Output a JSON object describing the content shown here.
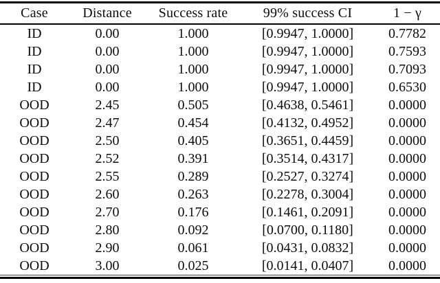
{
  "table": {
    "columns": [
      "Case",
      "Distance",
      "Success rate",
      "99% success CI",
      "1 − γ"
    ],
    "rows": [
      {
        "case": "ID",
        "distance": "0.00",
        "success_rate": "1.000",
        "ci": "[0.9947, 1.0000]",
        "one_minus_gamma": "0.7782"
      },
      {
        "case": "ID",
        "distance": "0.00",
        "success_rate": "1.000",
        "ci": "[0.9947, 1.0000]",
        "one_minus_gamma": "0.7593"
      },
      {
        "case": "ID",
        "distance": "0.00",
        "success_rate": "1.000",
        "ci": "[0.9947, 1.0000]",
        "one_minus_gamma": "0.7093"
      },
      {
        "case": "ID",
        "distance": "0.00",
        "success_rate": "1.000",
        "ci": "[0.9947, 1.0000]",
        "one_minus_gamma": "0.6530"
      },
      {
        "case": "OOD",
        "distance": "2.45",
        "success_rate": "0.505",
        "ci": "[0.4638, 0.5461]",
        "one_minus_gamma": "0.0000"
      },
      {
        "case": "OOD",
        "distance": "2.47",
        "success_rate": "0.454",
        "ci": "[0.4132, 0.4952]",
        "one_minus_gamma": "0.0000"
      },
      {
        "case": "OOD",
        "distance": "2.50",
        "success_rate": "0.405",
        "ci": "[0.3651, 0.4459]",
        "one_minus_gamma": "0.0000"
      },
      {
        "case": "OOD",
        "distance": "2.52",
        "success_rate": "0.391",
        "ci": "[0.3514, 0.4317]",
        "one_minus_gamma": "0.0000"
      },
      {
        "case": "OOD",
        "distance": "2.55",
        "success_rate": "0.289",
        "ci": "[0.2527, 0.3274]",
        "one_minus_gamma": "0.0000"
      },
      {
        "case": "OOD",
        "distance": "2.60",
        "success_rate": "0.263",
        "ci": "[0.2278, 0.3004]",
        "one_minus_gamma": "0.0000"
      },
      {
        "case": "OOD",
        "distance": "2.70",
        "success_rate": "0.176",
        "ci": "[0.1461, 0.2091]",
        "one_minus_gamma": "0.0000"
      },
      {
        "case": "OOD",
        "distance": "2.80",
        "success_rate": "0.092",
        "ci": "[0.0700, 0.1180]",
        "one_minus_gamma": "0.0000"
      },
      {
        "case": "OOD",
        "distance": "2.90",
        "success_rate": "0.061",
        "ci": "[0.0431, 0.0832]",
        "one_minus_gamma": "0.0000"
      },
      {
        "case": "OOD",
        "distance": "3.00",
        "success_rate": "0.025",
        "ci": "[0.0141, 0.0407]",
        "one_minus_gamma": "0.0000"
      }
    ]
  },
  "chart_data": {
    "type": "table",
    "columns": [
      "Case",
      "Distance",
      "Success rate",
      "99% success CI",
      "1 − γ"
    ],
    "rows": [
      [
        "ID",
        0.0,
        1.0,
        "[0.9947, 1.0000]",
        0.7782
      ],
      [
        "ID",
        0.0,
        1.0,
        "[0.9947, 1.0000]",
        0.7593
      ],
      [
        "ID",
        0.0,
        1.0,
        "[0.9947, 1.0000]",
        0.7093
      ],
      [
        "ID",
        0.0,
        1.0,
        "[0.9947, 1.0000]",
        0.653
      ],
      [
        "OOD",
        2.45,
        0.505,
        "[0.4638, 0.5461]",
        0.0
      ],
      [
        "OOD",
        2.47,
        0.454,
        "[0.4132, 0.4952]",
        0.0
      ],
      [
        "OOD",
        2.5,
        0.405,
        "[0.3651, 0.4459]",
        0.0
      ],
      [
        "OOD",
        2.52,
        0.391,
        "[0.3514, 0.4317]",
        0.0
      ],
      [
        "OOD",
        2.55,
        0.289,
        "[0.2527, 0.3274]",
        0.0
      ],
      [
        "OOD",
        2.6,
        0.263,
        "[0.2278, 0.3004]",
        0.0
      ],
      [
        "OOD",
        2.7,
        0.176,
        "[0.1461, 0.2091]",
        0.0
      ],
      [
        "OOD",
        2.8,
        0.092,
        "[0.0700, 0.1180]",
        0.0
      ],
      [
        "OOD",
        2.9,
        0.061,
        "[0.0431, 0.0832]",
        0.0
      ],
      [
        "OOD",
        3.0,
        0.025,
        "[0.0141, 0.0407]",
        0.0
      ]
    ]
  }
}
